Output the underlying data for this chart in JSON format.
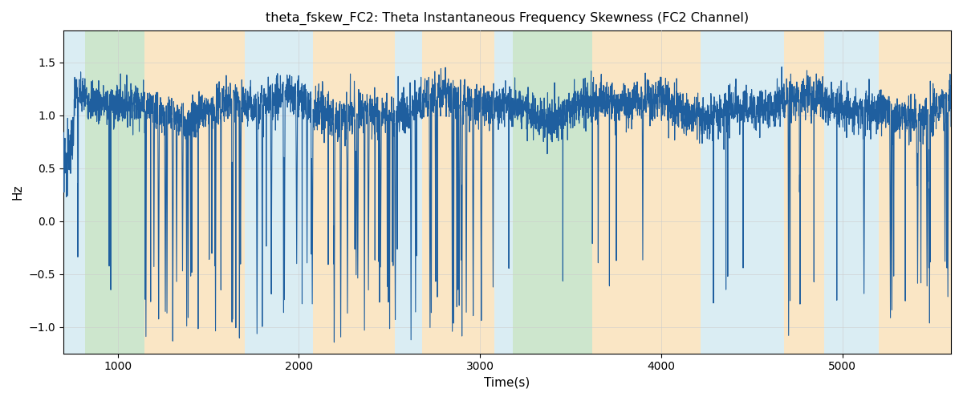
{
  "title": "theta_fskew_FC2: Theta Instantaneous Frequency Skewness (FC2 Channel)",
  "xlabel": "Time(s)",
  "ylabel": "Hz",
  "xlim": [
    700,
    5600
  ],
  "ylim": [
    -1.25,
    1.8
  ],
  "line_color": "#1f5f9f",
  "line_width": 0.8,
  "background_color": "#ffffff",
  "grid_color": "#cccccc",
  "regions": [
    {
      "start": 700,
      "end": 820,
      "color": "#add8e6",
      "alpha": 0.45
    },
    {
      "start": 820,
      "end": 1150,
      "color": "#90c890",
      "alpha": 0.45
    },
    {
      "start": 1150,
      "end": 1700,
      "color": "#f5c880",
      "alpha": 0.45
    },
    {
      "start": 1700,
      "end": 2080,
      "color": "#add8e6",
      "alpha": 0.45
    },
    {
      "start": 2080,
      "end": 2530,
      "color": "#f5c880",
      "alpha": 0.45
    },
    {
      "start": 2530,
      "end": 2680,
      "color": "#add8e6",
      "alpha": 0.45
    },
    {
      "start": 2680,
      "end": 3080,
      "color": "#f5c880",
      "alpha": 0.45
    },
    {
      "start": 3080,
      "end": 3180,
      "color": "#add8e6",
      "alpha": 0.45
    },
    {
      "start": 3180,
      "end": 3620,
      "color": "#90c890",
      "alpha": 0.45
    },
    {
      "start": 3620,
      "end": 3900,
      "color": "#f5c880",
      "alpha": 0.45
    },
    {
      "start": 3900,
      "end": 4220,
      "color": "#f5c880",
      "alpha": 0.45
    },
    {
      "start": 4220,
      "end": 4680,
      "color": "#add8e6",
      "alpha": 0.45
    },
    {
      "start": 4680,
      "end": 4900,
      "color": "#f5c880",
      "alpha": 0.45
    },
    {
      "start": 4900,
      "end": 5200,
      "color": "#add8e6",
      "alpha": 0.45
    },
    {
      "start": 5200,
      "end": 5600,
      "color": "#f5c880",
      "alpha": 0.45
    }
  ],
  "t_start": 700,
  "t_end": 5600,
  "n_points": 4900,
  "seed": 7
}
